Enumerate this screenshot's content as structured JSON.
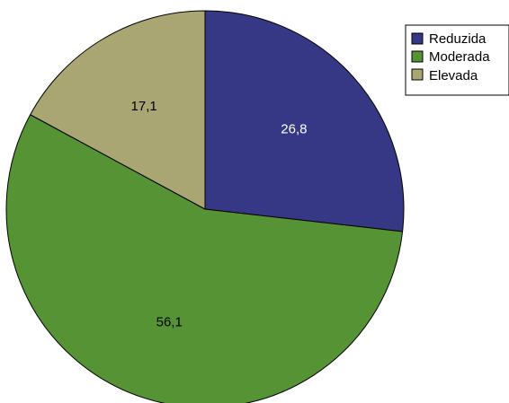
{
  "chart_data": {
    "type": "pie",
    "categories": [
      "Reduzida",
      "Moderada",
      "Elevada"
    ],
    "values": [
      26.8,
      56.1,
      17.1
    ],
    "data_labels": [
      "26,8",
      "56,1",
      "17,1"
    ],
    "colors": [
      "#363886",
      "#559335",
      "#a9a674"
    ],
    "label_colors": [
      "#ffffff",
      "#000000",
      "#000000"
    ],
    "start_angle_deg": 0,
    "direction": "clockwise",
    "legend": {
      "position": "top-right",
      "entries": [
        "Reduzida",
        "Moderada",
        "Elevada"
      ]
    },
    "title": ""
  }
}
